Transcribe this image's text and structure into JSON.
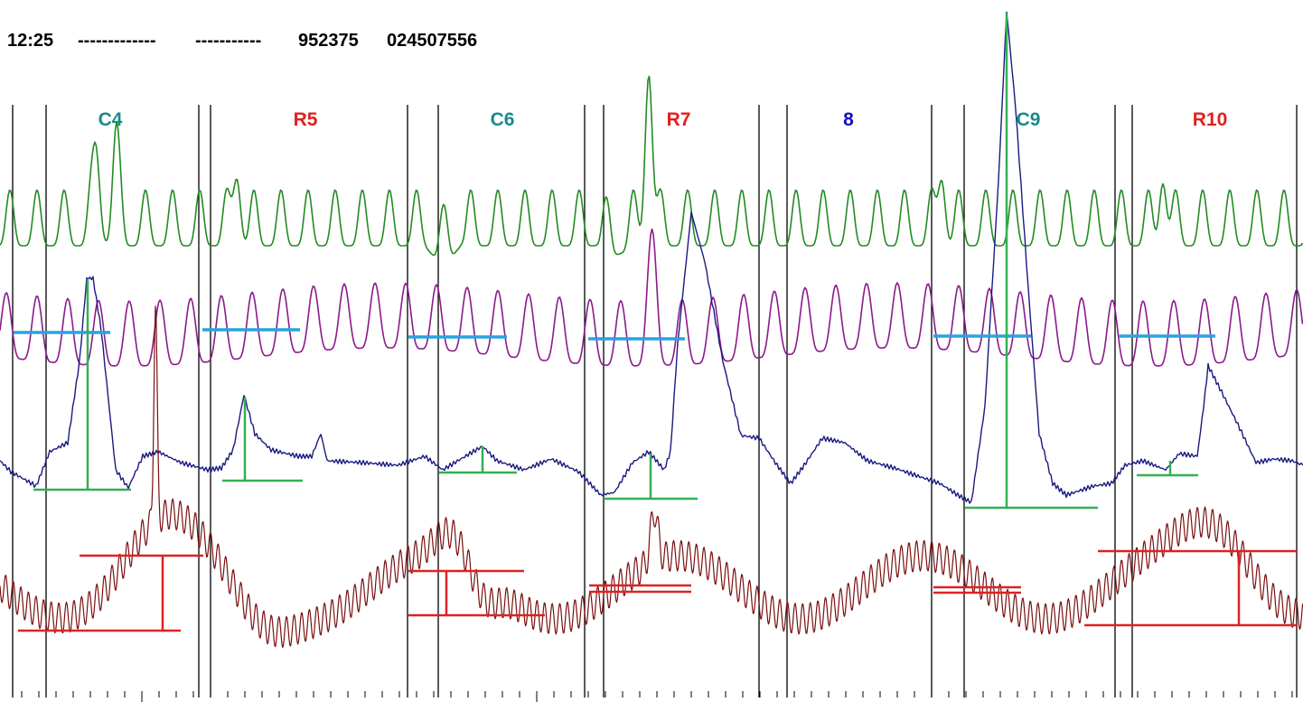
{
  "header": {
    "time": "12:25",
    "field_1": "-------------",
    "field_2": "-----------",
    "id_1": "952375",
    "id_2": "024507556"
  },
  "chart_data": {
    "type": "line",
    "title": "",
    "xlabel": "",
    "ylabel": "",
    "grid": false,
    "legend": "none",
    "segments": [
      {
        "label": "C4",
        "color": "#1a8a8a"
      },
      {
        "label": "R5",
        "color": "#e02020"
      },
      {
        "label": "C6",
        "color": "#1a8a8a"
      },
      {
        "label": "R7",
        "color": "#e02020"
      },
      {
        "label": "8",
        "color": "#1010c0"
      },
      {
        "label": "C9",
        "color": "#1a8a8a"
      },
      {
        "label": "R10",
        "color": "#e02020"
      }
    ],
    "trace_colors": {
      "green": "#228B22",
      "purple": "#8B1A8B",
      "navy": "#1a1a80",
      "maroon": "#7a1010",
      "marker_blue": "#29a3e0",
      "marker_green": "#33b055",
      "marker_red": "#dd2222"
    }
  }
}
